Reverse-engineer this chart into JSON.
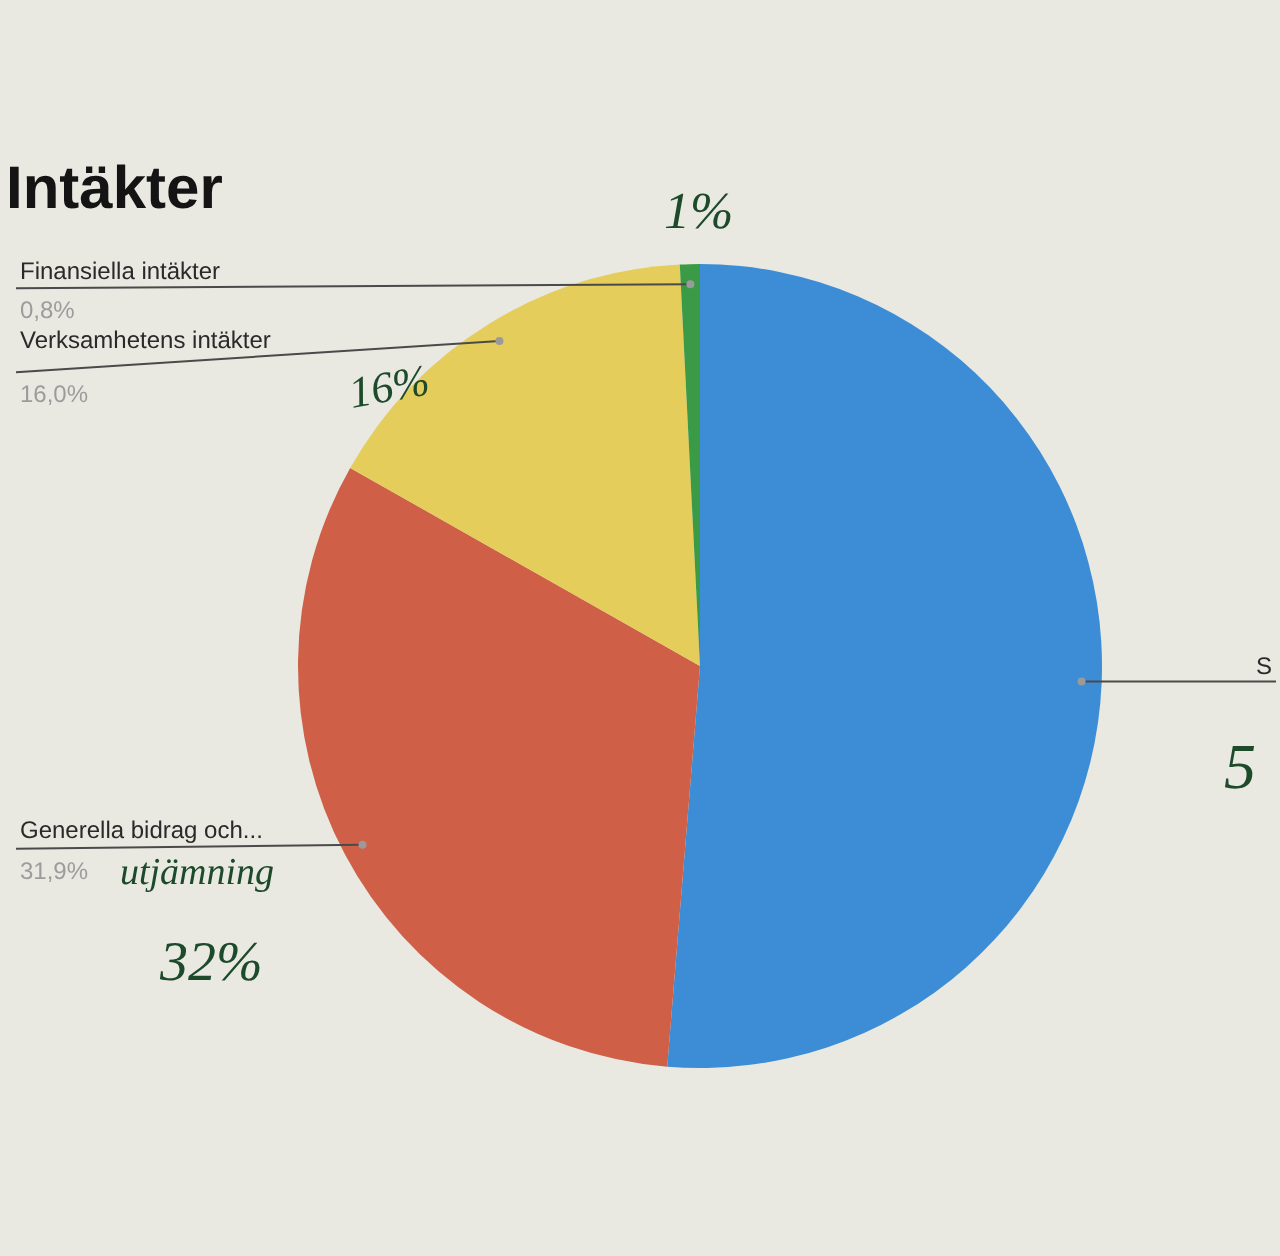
{
  "chart_data": {
    "type": "pie",
    "title": "Intäkter",
    "categories": [
      "S",
      "Generella bidrag och...",
      "Verksamhetens intäkter",
      "Finansiella intäkter"
    ],
    "values": [
      51.3,
      31.9,
      16.0,
      0.8
    ],
    "colors": [
      "#3d8dd6",
      "#cf5f47",
      "#e5cd5b",
      "#3b9a45"
    ],
    "value_labels": [
      null,
      "31,9%",
      "16,0%",
      "0,8%"
    ],
    "annotations": [
      "1%",
      "16%",
      "utjämning",
      "32%",
      "5"
    ]
  }
}
